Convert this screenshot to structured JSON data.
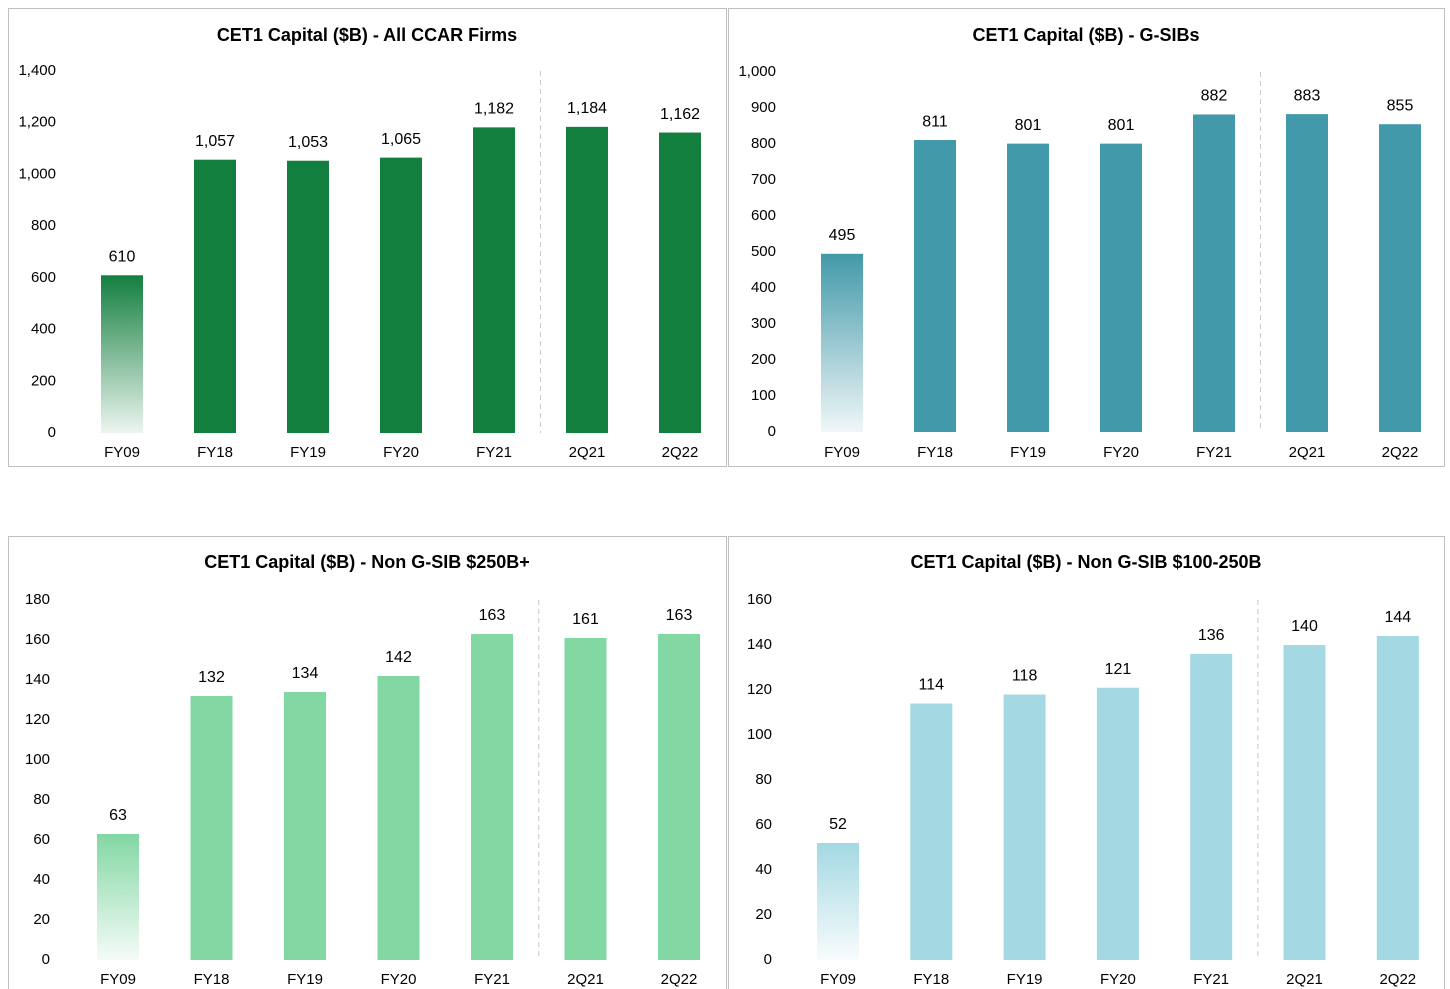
{
  "chart_data": [
    {
      "type": "bar",
      "title": "CET1 Capital ($B) - All CCAR Firms",
      "categories": [
        "FY09",
        "FY18",
        "FY19",
        "FY20",
        "FY21",
        "2Q21",
        "2Q22"
      ],
      "values": [
        610,
        1057,
        1053,
        1065,
        1182,
        1184,
        1162
      ],
      "value_labels": [
        "610",
        "1,057",
        "1,053",
        "1,065",
        "1,182",
        "1,184",
        "1,162"
      ],
      "color": "#137f3f",
      "ylim": [
        0,
        1400
      ],
      "yticks": [
        0,
        200,
        400,
        600,
        800,
        {
          "value": 1000,
          "label": "1,000"
        },
        {
          "value": 1200,
          "label": "1,200"
        },
        {
          "value": 1400,
          "label": "1,400"
        }
      ]
    },
    {
      "type": "bar",
      "title": "CET1 Capital ($B) - G-SIBs",
      "categories": [
        "FY09",
        "FY18",
        "FY19",
        "FY20",
        "FY21",
        "2Q21",
        "2Q22"
      ],
      "values": [
        495,
        811,
        801,
        801,
        882,
        883,
        855
      ],
      "color": "#4299a9",
      "ylim": [
        0,
        1000
      ],
      "yticks": [
        0,
        100,
        200,
        300,
        400,
        500,
        600,
        700,
        800,
        900,
        {
          "value": 1000,
          "label": "1,000"
        }
      ]
    },
    {
      "type": "bar",
      "title": "CET1 Capital ($B) - Non G-SIB $250B+",
      "categories": [
        "FY09",
        "FY18",
        "FY19",
        "FY20",
        "FY21",
        "2Q21",
        "2Q22"
      ],
      "values": [
        63,
        132,
        134,
        142,
        163,
        161,
        163
      ],
      "color": "#82d7a3",
      "ylim": [
        0,
        180
      ],
      "yticks": [
        0,
        20,
        40,
        60,
        80,
        100,
        120,
        140,
        160,
        180
      ]
    },
    {
      "type": "bar",
      "title": "CET1 Capital ($B) - Non G-SIB $100-250B",
      "categories": [
        "FY09",
        "FY18",
        "FY19",
        "FY20",
        "FY21",
        "2Q21",
        "2Q22"
      ],
      "values": [
        52,
        114,
        118,
        121,
        136,
        140,
        144
      ],
      "color": "#a4d8e2",
      "ylim": [
        0,
        160
      ],
      "yticks": [
        0,
        20,
        40,
        60,
        80,
        100,
        120,
        140,
        160
      ]
    }
  ]
}
